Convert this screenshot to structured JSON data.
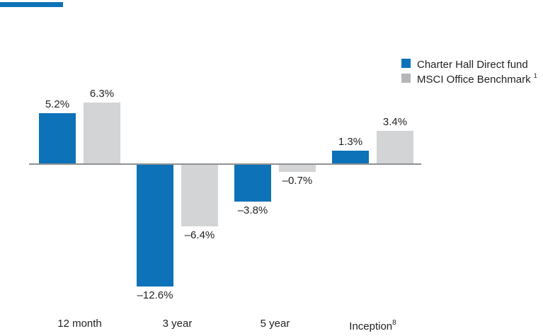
{
  "colors": {
    "fund": "#0d72b8",
    "benchmark_bar": "#d3d4d6",
    "benchmark_legend": "#b4b6b9",
    "axis_line": "#8f9194",
    "text": "#231f20",
    "brand_bar": "#0d72b8"
  },
  "legend": {
    "items": [
      {
        "label": "Charter Hall Direct fund",
        "sup": "",
        "color_key": "fund"
      },
      {
        "label": "MSCI Office Benchmark ",
        "sup": "1",
        "color_key": "benchmark_legend"
      }
    ]
  },
  "chart_data": {
    "type": "bar",
    "categories": [
      {
        "text": "12 month",
        "sup": ""
      },
      {
        "text": "3 year",
        "sup": ""
      },
      {
        "text": "5 year",
        "sup": ""
      },
      {
        "text": "Inception",
        "sup": "8"
      }
    ],
    "series": [
      {
        "name": "Charter Hall Direct fund",
        "color_key": "fund",
        "values": [
          5.2,
          -12.6,
          -3.8,
          1.3
        ],
        "labels": [
          "5.2%",
          "-12.6%",
          "-3.8%",
          "1.3%"
        ]
      },
      {
        "name": "MSCI Office Benchmark 1",
        "color_key": "benchmark_bar",
        "values": [
          6.3,
          -6.4,
          -0.7,
          3.4
        ],
        "labels": [
          "6.3%",
          "-6.4%",
          "-0.7%",
          "3.4%"
        ]
      }
    ],
    "unit": "%",
    "baseline": 0,
    "ylim": [
      -13.5,
      7
    ],
    "grid": false,
    "y_axis_ticks_visible": false,
    "legend_position": "top-right"
  }
}
